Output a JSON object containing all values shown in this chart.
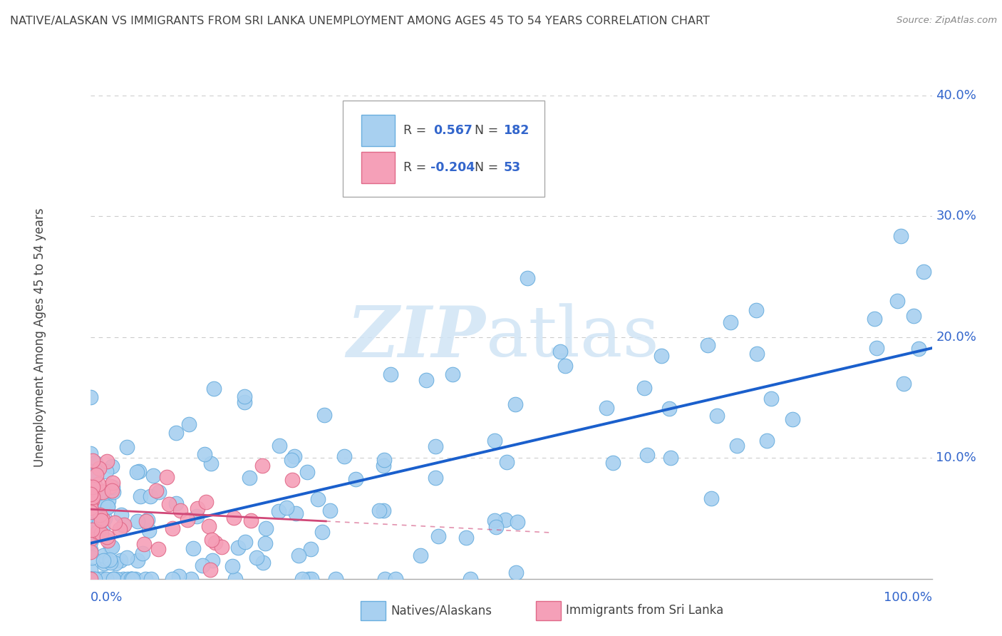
{
  "title": "NATIVE/ALASKAN VS IMMIGRANTS FROM SRI LANKA UNEMPLOYMENT AMONG AGES 45 TO 54 YEARS CORRELATION CHART",
  "source": "Source: ZipAtlas.com",
  "ylabel": "Unemployment Among Ages 45 to 54 years",
  "native_color": "#a8d0f0",
  "native_edge_color": "#6aaede",
  "sri_color": "#f5a0b8",
  "sri_edge_color": "#e06888",
  "line_color": "#1a5fcc",
  "sri_line_color": "#d04878",
  "background_color": "#ffffff",
  "watermark_text": "ZIPatlas",
  "watermark_color": "#d0e4f5",
  "xlim": [
    0.0,
    1.0
  ],
  "ylim": [
    0.0,
    0.4
  ],
  "grid_color": "#cccccc",
  "legend_r1": "R =",
  "legend_v1": "0.567",
  "legend_n1": "N =",
  "legend_nv1": "182",
  "legend_r2": "R =",
  "legend_v2": "-0.204",
  "legend_n2": "N =",
  "legend_nv2": "53",
  "label_color": "#3366cc",
  "text_color": "#444444",
  "source_color": "#888888"
}
